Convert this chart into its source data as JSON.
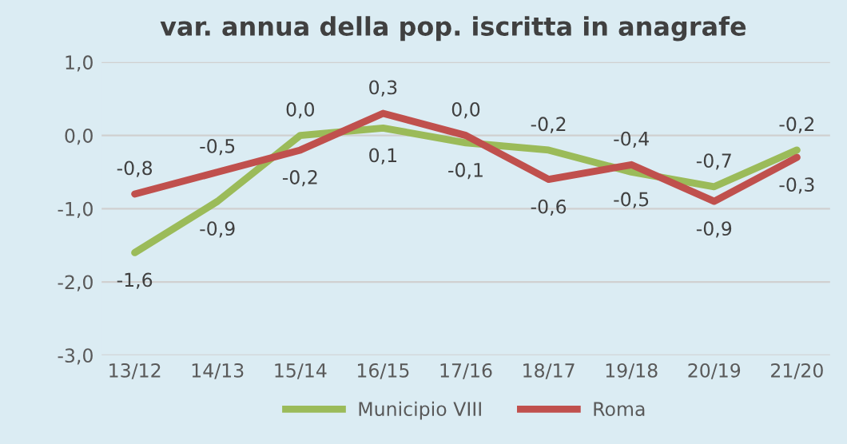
{
  "chart_data": {
    "type": "line",
    "title": "var. annua della pop. iscritta in anagrafe",
    "categories": [
      "13/12",
      "14/13",
      "15/14",
      "16/15",
      "17/16",
      "18/17",
      "19/18",
      "20/19",
      "21/20"
    ],
    "series": [
      {
        "name": "Municipio VIII",
        "color": "#9bbb59",
        "values": [
          -1.6,
          -0.9,
          0.0,
          0.1,
          -0.1,
          -0.2,
          -0.5,
          -0.7,
          -0.2
        ],
        "value_labels": [
          "-1,6",
          "-0,9",
          "0,0",
          "0,1",
          "-0,1",
          "-0,2",
          "-0,5",
          "-0,7",
          "-0,2"
        ]
      },
      {
        "name": "Roma",
        "color": "#c0504d",
        "values": [
          -0.8,
          -0.5,
          -0.2,
          0.3,
          0.0,
          -0.6,
          -0.4,
          -0.9,
          -0.3
        ],
        "value_labels": [
          "-0,8",
          "-0,5",
          "-0,2",
          "0,3",
          "0,0",
          "-0,6",
          "-0,4",
          "-0,9",
          "-0,3"
        ]
      }
    ],
    "ylim": [
      -3.0,
      1.0
    ],
    "yticks": [
      {
        "value": -3.0,
        "label": "-3,0"
      },
      {
        "value": -2.0,
        "label": "-2,0"
      },
      {
        "value": -1.0,
        "label": "-1,0"
      },
      {
        "value": 0.0,
        "label": "0,0"
      },
      {
        "value": 1.0,
        "label": "1,0"
      }
    ],
    "grid": "y",
    "legend": "bottom",
    "marker": "none",
    "line_style": "solid"
  }
}
